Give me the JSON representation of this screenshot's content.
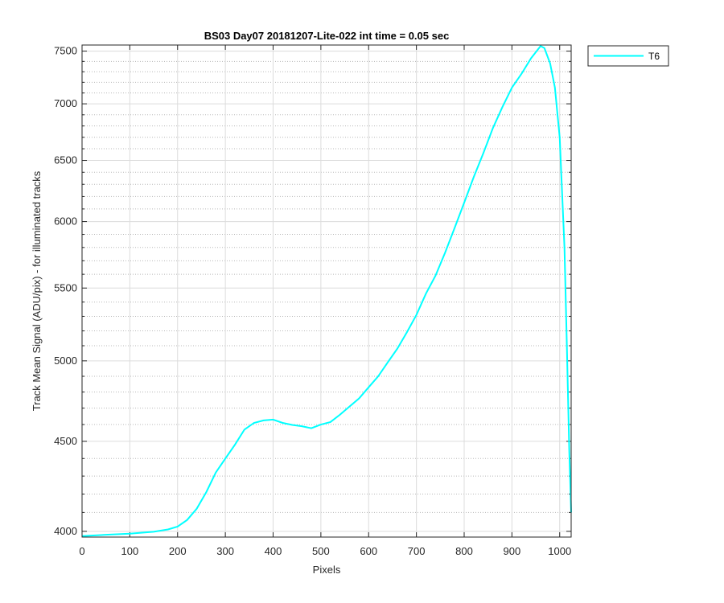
{
  "chart_data": {
    "type": "line",
    "title": "BS03 Day07 20181207-Lite-022 int time = 0.05 sec",
    "xlabel": "Pixels",
    "ylabel": "Track Mean Signal (ADU/pix) - for illuminated tracks",
    "xlim": [
      0,
      1024
    ],
    "ylim": [
      3970,
      7560
    ],
    "yscale": "log",
    "x_ticks": [
      0,
      100,
      200,
      300,
      400,
      500,
      600,
      700,
      800,
      900,
      1000
    ],
    "y_ticks": [
      4000,
      4500,
      5000,
      5500,
      6000,
      6500,
      7000,
      7500
    ],
    "y_minor_ticks": [
      4100,
      4200,
      4300,
      4400,
      4600,
      4700,
      4800,
      4900,
      5100,
      5200,
      5300,
      5400,
      5600,
      5700,
      5800,
      5900,
      6100,
      6200,
      6300,
      6400,
      6600,
      6700,
      6800,
      6900,
      7100,
      7200,
      7300,
      7400
    ],
    "grid": true,
    "legend_position": "outside-top-right",
    "series": [
      {
        "name": "T6",
        "color": "#00FFFF",
        "x": [
          0,
          20,
          50,
          100,
          150,
          180,
          200,
          220,
          240,
          260,
          280,
          300,
          320,
          340,
          360,
          380,
          400,
          420,
          440,
          460,
          480,
          500,
          520,
          540,
          560,
          580,
          600,
          620,
          640,
          660,
          680,
          700,
          720,
          740,
          760,
          780,
          800,
          820,
          840,
          860,
          880,
          900,
          920,
          940,
          960,
          968,
          980,
          990,
          1000,
          1010,
          1015,
          1020,
          1024
        ],
        "values": [
          3975,
          3978,
          3982,
          3988,
          3998,
          4010,
          4025,
          4060,
          4120,
          4210,
          4320,
          4400,
          4480,
          4570,
          4610,
          4625,
          4630,
          4610,
          4598,
          4590,
          4578,
          4600,
          4615,
          4660,
          4710,
          4760,
          4830,
          4900,
          4990,
          5080,
          5190,
          5310,
          5460,
          5590,
          5760,
          5950,
          6150,
          6360,
          6560,
          6780,
          6970,
          7150,
          7280,
          7430,
          7550,
          7530,
          7380,
          7150,
          6700,
          5800,
          5100,
          4450,
          4100
        ]
      }
    ]
  }
}
